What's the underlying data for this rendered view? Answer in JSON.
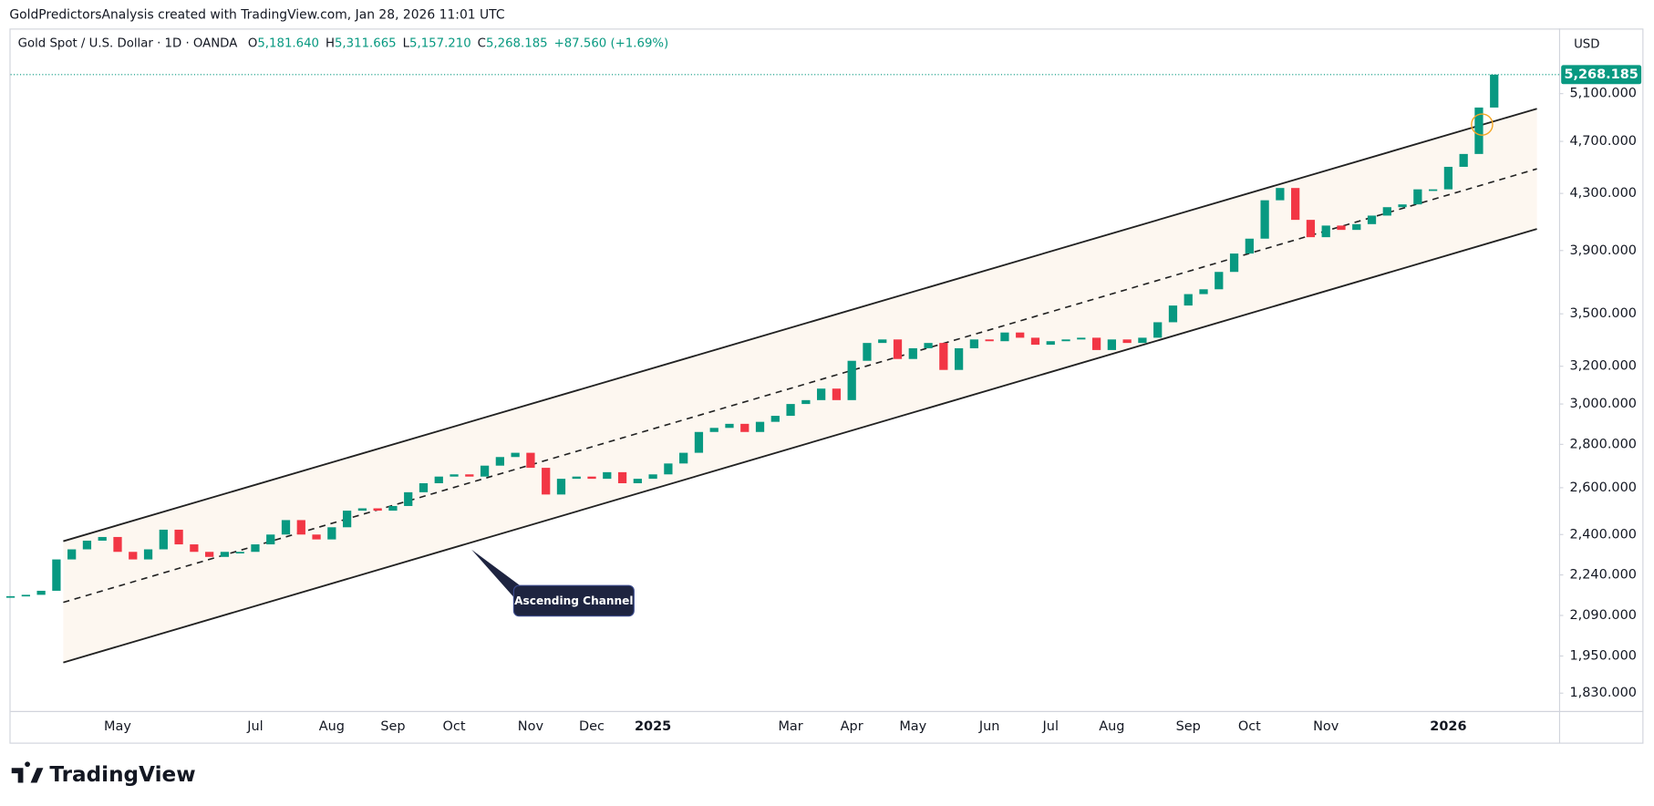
{
  "header": {
    "watermark": "GoldPredictorsAnalysis created with TradingView.com, Jan 28, 2026 11:01 UTC",
    "brand": "TradingView"
  },
  "chart_data": {
    "type": "candlestick",
    "title": "Gold Spot / U.S. Dollar · 1D · OANDA",
    "ohlc": [
      {
        "label": "O",
        "value": "5,181.640"
      },
      {
        "label": "H",
        "value": "5,311.665"
      },
      {
        "label": "L",
        "value": "5,157.210"
      },
      {
        "label": "C",
        "value": "5,268.185"
      }
    ],
    "change": "+87.560 (+1.69%)",
    "currency": "USD",
    "last_price": 5268.185,
    "last_price_label": "5,268.185",
    "annotation": "Ascending Channel",
    "up_color": "#089981",
    "down_color": "#f23645",
    "log_scale": true,
    "categories": [
      null,
      null,
      null,
      null,
      null,
      null,
      null,
      "May",
      null,
      null,
      null,
      null,
      null,
      null,
      null,
      null,
      "Jul",
      null,
      null,
      null,
      null,
      "Aug",
      null,
      null,
      null,
      "Sep",
      null,
      null,
      null,
      "Oct",
      null,
      null,
      null,
      null,
      "Nov",
      null,
      null,
      null,
      "Dec",
      null,
      null,
      null,
      "2025",
      null,
      null,
      null,
      null,
      null,
      null,
      null,
      null,
      "Mar",
      null,
      null,
      null,
      "Apr",
      null,
      null,
      null,
      "May",
      null,
      null,
      null,
      null,
      "Jun",
      null,
      null,
      null,
      "Jul",
      null,
      null,
      null,
      "Aug",
      null,
      null,
      null,
      null,
      "Sep",
      null,
      null,
      null,
      "Oct",
      null,
      null,
      null,
      null,
      "Nov",
      null,
      null,
      null,
      null,
      null,
      null,
      null,
      "2026",
      null,
      null,
      null
    ],
    "values": [
      2160,
      2165,
      2180,
      2300,
      2340,
      2375,
      2390,
      2330,
      2300,
      2340,
      2420,
      2360,
      2330,
      2310,
      2330,
      2330,
      2360,
      2400,
      2460,
      2400,
      2380,
      2430,
      2500,
      2510,
      2500,
      2520,
      2580,
      2620,
      2650,
      2660,
      2650,
      2700,
      2740,
      2760,
      2690,
      2570,
      2640,
      2650,
      2640,
      2670,
      2620,
      2640,
      2660,
      2710,
      2760,
      2860,
      2880,
      2900,
      2860,
      2910,
      2940,
      3000,
      3020,
      3080,
      3020,
      3230,
      3330,
      3350,
      3240,
      3300,
      3330,
      3180,
      3300,
      3350,
      3340,
      3390,
      3360,
      3320,
      3340,
      3350,
      3360,
      3290,
      3350,
      3330,
      3360,
      3450,
      3550,
      3620,
      3650,
      3760,
      3880,
      3980,
      4250,
      4340,
      4110,
      3990,
      4070,
      4040,
      4080,
      4140,
      4200,
      4220,
      4330,
      4330,
      4500,
      4600,
      4980,
      5268.185
    ],
    "ylim": [
      1775,
      5700
    ],
    "yticks": [
      {
        "value": 1830,
        "label": "1,830.000"
      },
      {
        "value": 1950,
        "label": "1,950.000"
      },
      {
        "value": 2090,
        "label": "2,090.000"
      },
      {
        "value": 2240,
        "label": "2,240.000"
      },
      {
        "value": 2400,
        "label": "2,400.000"
      },
      {
        "value": 2600,
        "label": "2,600.000"
      },
      {
        "value": 2800,
        "label": "2,800.000"
      },
      {
        "value": 3000,
        "label": "3,000.000"
      },
      {
        "value": 3200,
        "label": "3,200.000"
      },
      {
        "value": 3500,
        "label": "3,500.000"
      },
      {
        "value": 3900,
        "label": "3,900.000"
      },
      {
        "value": 4300,
        "label": "4,300.000"
      },
      {
        "value": 4700,
        "label": "4,700.000"
      },
      {
        "value": 5100,
        "label": "5,100.000"
      }
    ]
  }
}
